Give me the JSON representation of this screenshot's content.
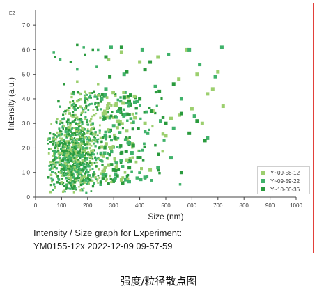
{
  "caption": "强度/粒径散点图",
  "experiment": {
    "title_line": "Intensity / Size graph for Experiment:",
    "id_line": "YM0155-12x 2022-12-09 09-57-59"
  },
  "chart_data": {
    "type": "scatter",
    "title": "",
    "xlabel": "Size (nm)",
    "ylabel": "Intensity (a.u.)",
    "y_multiplier_label": "E2",
    "xlim": [
      0,
      1000
    ],
    "ylim": [
      0,
      7.6
    ],
    "x_ticks": [
      "0",
      "100",
      "200",
      "300",
      "400",
      "500",
      "600",
      "700",
      "800",
      "900",
      "1000"
    ],
    "y_ticks": [
      "0",
      "1.0",
      "2.0",
      "3.0",
      "4.0",
      "5.0",
      "6.0",
      "7.0"
    ],
    "grid": false,
    "legend_position": "lower-right",
    "series": [
      {
        "name": "Y~09-58-12",
        "color": "#9ccf6e",
        "points": [
          [
            60,
            0.9
          ],
          [
            70,
            1.4
          ],
          [
            85,
            2.2
          ],
          [
            95,
            1.0
          ],
          [
            110,
            2.9
          ],
          [
            120,
            1.7
          ],
          [
            130,
            3.4
          ],
          [
            140,
            2.4
          ],
          [
            150,
            1.2
          ],
          [
            160,
            3.9
          ],
          [
            170,
            2.1
          ],
          [
            180,
            1.5
          ],
          [
            190,
            4.3
          ],
          [
            200,
            2.6
          ],
          [
            210,
            3.1
          ],
          [
            220,
            1.9
          ],
          [
            240,
            4.6
          ],
          [
            250,
            2.4
          ],
          [
            260,
            3.4
          ],
          [
            280,
            5.6
          ],
          [
            290,
            2.0
          ],
          [
            310,
            3.8
          ],
          [
            330,
            5.9
          ],
          [
            350,
            2.7
          ],
          [
            380,
            4.1
          ],
          [
            400,
            5.5
          ],
          [
            420,
            3.0
          ],
          [
            450,
            3.5
          ],
          [
            470,
            5.7
          ],
          [
            500,
            2.5
          ],
          [
            520,
            3.2
          ],
          [
            550,
            4.8
          ],
          [
            580,
            6.0
          ],
          [
            600,
            3.6
          ],
          [
            620,
            5.0
          ],
          [
            640,
            3.0
          ],
          [
            660,
            4.2
          ],
          [
            680,
            4.4
          ],
          [
            700,
            5.1
          ],
          [
            720,
            3.7
          ],
          [
            100,
            0.6
          ],
          [
            130,
            0.9
          ],
          [
            90,
            1.8
          ],
          [
            180,
            2.8
          ],
          [
            230,
            0.8
          ],
          [
            350,
            1.5
          ],
          [
            280,
            1.3
          ],
          [
            440,
            1.1
          ],
          [
            330,
            0.7
          ],
          [
            160,
            4.7
          ]
        ]
      },
      {
        "name": "Y~09-59-22",
        "color": "#3fb26a",
        "points": [
          [
            55,
            1.1
          ],
          [
            65,
            0.7
          ],
          [
            80,
            1.6
          ],
          [
            90,
            2.5
          ],
          [
            100,
            1.3
          ],
          [
            110,
            3.2
          ],
          [
            125,
            2.0
          ],
          [
            140,
            1.1
          ],
          [
            150,
            3.6
          ],
          [
            165,
            2.8
          ],
          [
            175,
            1.7
          ],
          [
            190,
            4.0
          ],
          [
            205,
            2.3
          ],
          [
            220,
            3.0
          ],
          [
            235,
            5.3
          ],
          [
            250,
            1.8
          ],
          [
            270,
            4.4
          ],
          [
            290,
            6.1
          ],
          [
            300,
            2.9
          ],
          [
            320,
            3.5
          ],
          [
            340,
            5.0
          ],
          [
            360,
            2.2
          ],
          [
            390,
            3.9
          ],
          [
            410,
            6.0
          ],
          [
            430,
            2.6
          ],
          [
            460,
            4.5
          ],
          [
            480,
            3.1
          ],
          [
            510,
            5.8
          ],
          [
            530,
            2.8
          ],
          [
            560,
            4.0
          ],
          [
            590,
            6.0
          ],
          [
            610,
            3.3
          ],
          [
            630,
            5.4
          ],
          [
            660,
            2.4
          ],
          [
            690,
            4.9
          ],
          [
            715,
            6.1
          ],
          [
            70,
            5.9
          ],
          [
            95,
            5.6
          ],
          [
            120,
            0.5
          ],
          [
            145,
            0.8
          ],
          [
            200,
            1.0
          ],
          [
            260,
            0.9
          ],
          [
            310,
            1.4
          ],
          [
            370,
            1.8
          ],
          [
            420,
            0.8
          ],
          [
            470,
            1.2
          ],
          [
            520,
            1.6
          ],
          [
            160,
            5.2
          ],
          [
            185,
            6.1
          ],
          [
            240,
            6.0
          ]
        ]
      },
      {
        "name": "Y~10-00-36",
        "color": "#2a9a3d",
        "points": [
          [
            50,
            0.8
          ],
          [
            60,
            1.3
          ],
          [
            75,
            2.0
          ],
          [
            85,
            0.6
          ],
          [
            95,
            2.7
          ],
          [
            105,
            1.5
          ],
          [
            115,
            3.5
          ],
          [
            130,
            2.2
          ],
          [
            140,
            0.9
          ],
          [
            155,
            3.0
          ],
          [
            165,
            1.8
          ],
          [
            180,
            2.5
          ],
          [
            195,
            3.7
          ],
          [
            210,
            1.4
          ],
          [
            225,
            4.3
          ],
          [
            245,
            2.0
          ],
          [
            265,
            3.2
          ],
          [
            285,
            4.9
          ],
          [
            305,
            2.4
          ],
          [
            325,
            3.6
          ],
          [
            350,
            5.1
          ],
          [
            375,
            2.1
          ],
          [
            400,
            4.0
          ],
          [
            420,
            5.2
          ],
          [
            445,
            3.5
          ],
          [
            475,
            4.3
          ],
          [
            500,
            3.0
          ],
          [
            530,
            4.6
          ],
          [
            560,
            3.4
          ],
          [
            590,
            2.6
          ],
          [
            620,
            3.1
          ],
          [
            650,
            2.3
          ],
          [
            110,
            4.6
          ],
          [
            135,
            5.5
          ],
          [
            160,
            6.2
          ],
          [
            190,
            5.8
          ],
          [
            220,
            6.0
          ],
          [
            270,
            5.7
          ],
          [
            330,
            6.1
          ],
          [
            440,
            5.5
          ],
          [
            75,
            5.7
          ],
          [
            88,
            3.9
          ],
          [
            120,
            0.4
          ],
          [
            150,
            0.6
          ],
          [
            175,
            0.5
          ],
          [
            210,
            0.7
          ],
          [
            250,
            0.6
          ],
          [
            300,
            1.1
          ],
          [
            360,
            1.2
          ],
          [
            560,
            1.0
          ]
        ]
      }
    ]
  }
}
